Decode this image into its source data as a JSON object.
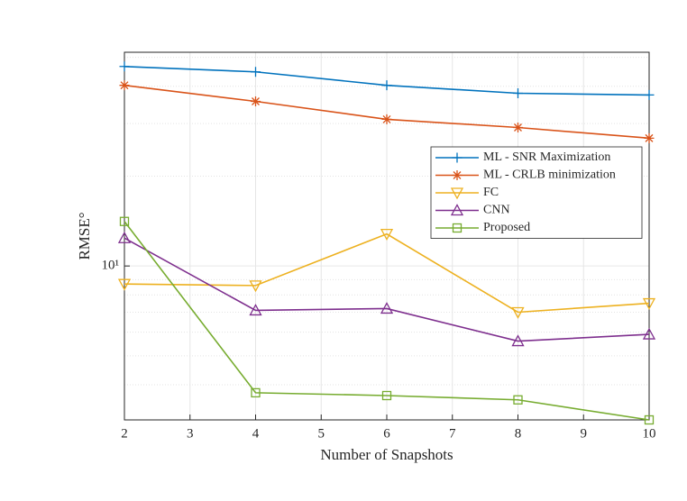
{
  "chart_data": {
    "type": "line",
    "x_label": "Number of Snapshots",
    "y_label": "RMSE°",
    "x": [
      2,
      4,
      6,
      8,
      10
    ],
    "xlim": [
      2,
      10
    ],
    "xticks": [
      2,
      3,
      4,
      5,
      6,
      7,
      8,
      9,
      10
    ],
    "ylim": [
      3.05,
      52
    ],
    "yticks": [
      {
        "value": 10,
        "label": "10¹"
      }
    ],
    "y_minor_grid": [
      4,
      5,
      6,
      7,
      8,
      9,
      20,
      30,
      40,
      50
    ],
    "log_y": true,
    "grid": true,
    "legend": "northeast",
    "series": [
      {
        "name": "ML - SNR Maximization",
        "color": "#0072BD",
        "marker": "plus",
        "values": [
          46.6,
          44.7,
          40.3,
          37.9,
          37.4
        ]
      },
      {
        "name": "ML - CRLB minimization",
        "color": "#D95319",
        "marker": "star",
        "values": [
          40.3,
          35.6,
          31.0,
          29.1,
          26.8
        ]
      },
      {
        "name": "FC",
        "color": "#EDB120",
        "marker": "triangle-down",
        "values": [
          8.7,
          8.6,
          12.8,
          7.0,
          7.5
        ]
      },
      {
        "name": "CNN",
        "color": "#7E2F8E",
        "marker": "triangle-up",
        "values": [
          12.4,
          7.1,
          7.2,
          5.6,
          5.9
        ]
      },
      {
        "name": "Proposed",
        "color": "#77AC30",
        "marker": "square",
        "values": [
          14.1,
          3.76,
          3.68,
          3.56,
          3.05
        ]
      }
    ]
  }
}
